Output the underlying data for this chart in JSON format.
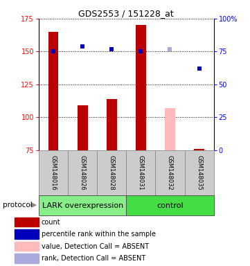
{
  "title": "GDS2553 / 151228_at",
  "samples": [
    "GSM148016",
    "GSM148026",
    "GSM148028",
    "GSM148031",
    "GSM148032",
    "GSM148035"
  ],
  "bar_values": [
    165,
    109,
    114,
    170,
    null,
    null
  ],
  "absent_bar_values": [
    null,
    null,
    null,
    null,
    107,
    76
  ],
  "percentile_values": [
    150,
    154,
    152,
    150,
    null,
    137
  ],
  "absent_percentile_values": [
    null,
    null,
    null,
    null,
    152,
    null
  ],
  "bar_color": "#bb0000",
  "absent_bar_color": "#ffbbbb",
  "absent_bar_color2": "#bb0000",
  "percentile_color": "#0000bb",
  "absent_percentile_color": "#aaaadd",
  "ylim_left": [
    75,
    175
  ],
  "ylim_right": [
    0,
    100
  ],
  "yticks_left": [
    75,
    100,
    125,
    150,
    175
  ],
  "yticks_right": [
    0,
    25,
    50,
    75,
    100
  ],
  "ytick_labels_right": [
    "0",
    "25",
    "50",
    "75",
    "100%"
  ],
  "groups": [
    {
      "label": "LARK overexpression",
      "start": 0,
      "end": 3,
      "color": "#88ee88"
    },
    {
      "label": "control",
      "start": 3,
      "end": 6,
      "color": "#44dd44"
    }
  ],
  "group_label": "protocol",
  "bar_width": 0.35,
  "sample_bg_color": "#cccccc",
  "legend_items": [
    {
      "label": "count",
      "color": "#bb0000"
    },
    {
      "label": "percentile rank within the sample",
      "color": "#0000bb"
    },
    {
      "label": "value, Detection Call = ABSENT",
      "color": "#ffbbbb"
    },
    {
      "label": "rank, Detection Call = ABSENT",
      "color": "#aaaadd"
    }
  ],
  "title_fontsize": 9,
  "tick_fontsize": 7,
  "sample_fontsize": 6,
  "group_fontsize": 8,
  "legend_fontsize": 7
}
